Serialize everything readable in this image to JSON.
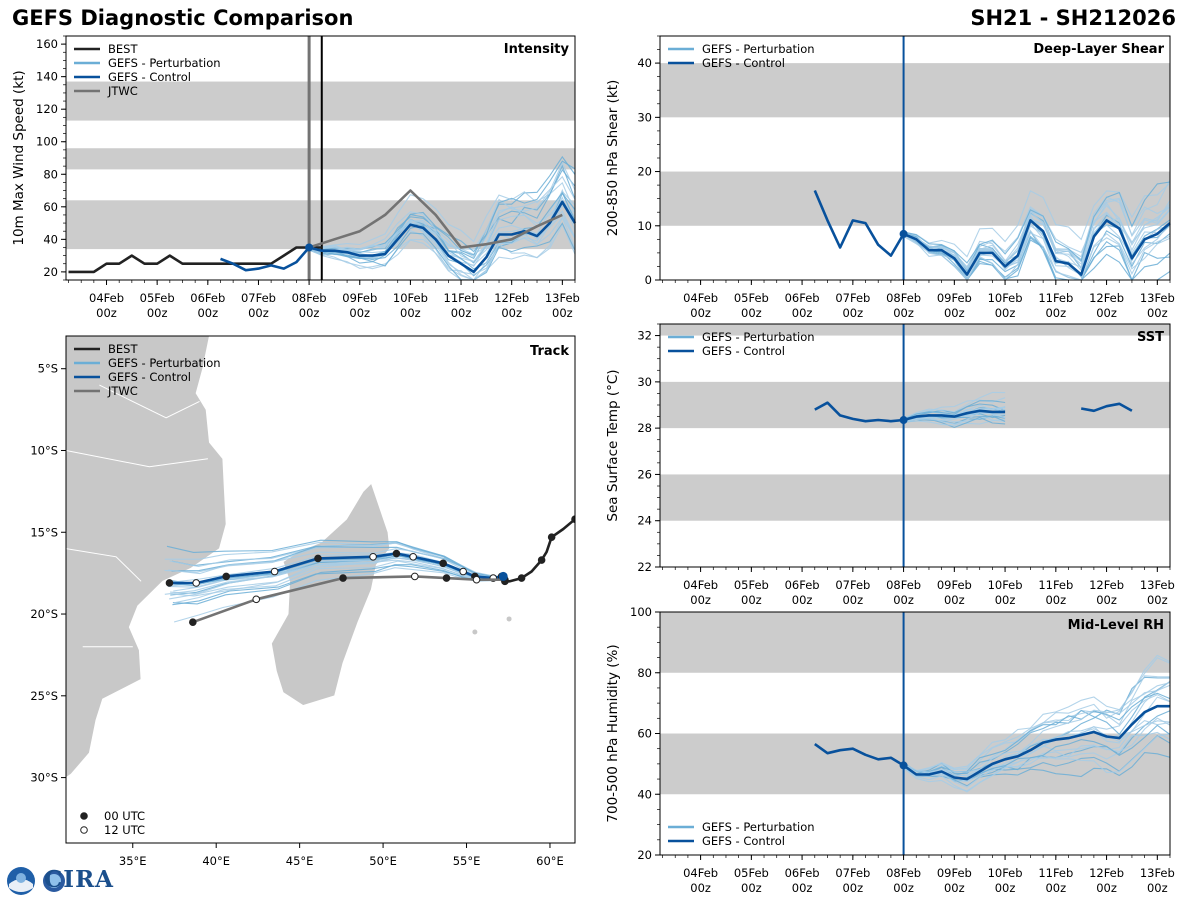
{
  "page": {
    "title_left": "GEFS Diagnostic Comparison",
    "title_right": "SH21 - SH212026",
    "logo_text": "CIRA",
    "noaa_text": "NOAA"
  },
  "colors": {
    "best": "#222222",
    "perturbation": "#6baed6",
    "perturbation_thin": "#a6cce6",
    "control": "#08519c",
    "jtwc": "#737373",
    "shade": "#cccccc",
    "land": "#c8c8c8"
  },
  "time_ticks": {
    "days": [
      "04Feb",
      "05Feb",
      "06Feb",
      "07Feb",
      "08Feb",
      "09Feb",
      "10Feb",
      "11Feb",
      "12Feb",
      "13Feb"
    ],
    "hour": "00z"
  },
  "chart_data": [
    {
      "id": "intensity",
      "type": "line",
      "title": "Intensity",
      "ylabel": "10m Max Wind Speed (kt)",
      "xlim_days": [
        3.2,
        13.25
      ],
      "ylim": [
        15,
        165
      ],
      "yticks": [
        20,
        40,
        60,
        80,
        100,
        120,
        140,
        160
      ],
      "shaded_bands": [
        [
          34,
          64
        ],
        [
          83,
          96
        ],
        [
          113,
          137
        ]
      ],
      "vlines_days": [
        8.0,
        8.25
      ],
      "legend": [
        "BEST",
        "GEFS - Perturbation",
        "GEFS - Control",
        "JTWC"
      ],
      "series": [
        {
          "name": "BEST",
          "x_days": [
            3.25,
            3.5,
            3.75,
            4.0,
            4.25,
            4.5,
            4.75,
            5.0,
            5.25,
            5.5,
            5.75,
            6.0,
            6.25,
            6.5,
            6.75,
            7.0,
            7.25,
            7.5,
            7.75,
            8.0,
            8.25
          ],
          "values": [
            20,
            20,
            20,
            25,
            25,
            30,
            25,
            25,
            30,
            25,
            25,
            25,
            25,
            25,
            25,
            25,
            25,
            30,
            35,
            35,
            35
          ]
        },
        {
          "name": "GEFS - Control",
          "x_days": [
            6.25,
            6.5,
            6.75,
            7.0,
            7.25,
            7.5,
            7.75,
            8.0,
            8.25,
            8.5,
            8.75,
            9.0,
            9.25,
            9.5,
            9.75,
            10.0,
            10.25,
            10.5,
            10.75,
            11.0,
            11.25,
            11.5,
            11.75,
            12.0,
            12.25,
            12.5,
            12.75,
            13.0,
            13.25
          ],
          "values": [
            28,
            25,
            21,
            22,
            24,
            22,
            26,
            35,
            33,
            33,
            32,
            30,
            30,
            31,
            40,
            49,
            47,
            40,
            30,
            25,
            20,
            29,
            43,
            43,
            45,
            42,
            50,
            63,
            50
          ]
        },
        {
          "name": "JTWC",
          "x_days": [
            8.0,
            8.5,
            9.0,
            9.5,
            10.0,
            10.5,
            11.0,
            11.5,
            12.0,
            12.5,
            13.0
          ],
          "values": [
            35,
            40,
            45,
            55,
            70,
            55,
            35,
            37,
            40,
            48,
            55
          ]
        }
      ]
    },
    {
      "id": "shear",
      "type": "line",
      "title": "Deep-Layer Shear",
      "ylabel": "200-850 hPa Shear (kt)",
      "xlim_days": [
        3.2,
        13.25
      ],
      "ylim": [
        0,
        45
      ],
      "yticks": [
        0,
        10,
        20,
        30,
        40
      ],
      "shaded_bands": [
        [
          10,
          20
        ],
        [
          30,
          40
        ]
      ],
      "vlines_days": [
        8.0
      ],
      "legend": [
        "GEFS - Perturbation",
        "GEFS - Control"
      ],
      "series": [
        {
          "name": "GEFS - Control",
          "x_days": [
            6.25,
            6.5,
            6.75,
            7.0,
            7.25,
            7.5,
            7.75,
            8.0,
            8.25,
            8.5,
            8.75,
            9.0,
            9.25,
            9.5,
            9.75,
            10.0,
            10.25,
            10.5,
            10.75,
            11.0,
            11.25,
            11.5,
            11.75,
            12.0,
            12.25,
            12.5,
            12.75,
            13.0,
            13.25
          ],
          "values": [
            16.5,
            11,
            6,
            11,
            10.5,
            6.5,
            4.5,
            8.5,
            7.5,
            5.5,
            5.5,
            4,
            1,
            5,
            5,
            2.5,
            4.5,
            11,
            9,
            3.5,
            3,
            1,
            8,
            11,
            9.5,
            4,
            7.5,
            8.5,
            10.5
          ]
        }
      ]
    },
    {
      "id": "sst",
      "type": "line",
      "title": "SST",
      "ylabel": "Sea Surface Temp (°C)",
      "xlim_days": [
        3.2,
        13.25
      ],
      "ylim": [
        22,
        32.5
      ],
      "yticks": [
        22,
        24,
        26,
        28,
        30,
        32
      ],
      "shaded_bands": [
        [
          24,
          26
        ],
        [
          28,
          30
        ],
        [
          32,
          32.5
        ]
      ],
      "vlines_days": [
        8.0
      ],
      "legend": [
        "GEFS - Perturbation",
        "GEFS - Control"
      ],
      "series": [
        {
          "name": "GEFS - Control",
          "x_days": [
            6.25,
            6.5,
            6.75,
            7.0,
            7.25,
            7.5,
            7.75,
            8.0,
            8.25,
            8.5,
            8.75,
            9.0,
            9.25,
            9.5,
            9.75,
            10.0
          ],
          "values": [
            28.8,
            29.1,
            28.55,
            28.4,
            28.3,
            28.35,
            28.3,
            28.35,
            28.5,
            28.55,
            28.55,
            28.5,
            28.65,
            28.75,
            28.7,
            28.7
          ]
        },
        {
          "name": "GEFS - Control (late)",
          "x_days": [
            11.5,
            11.75,
            12.0,
            12.25,
            12.5
          ],
          "values": [
            28.85,
            28.75,
            28.95,
            29.05,
            28.75
          ]
        }
      ]
    },
    {
      "id": "rh",
      "type": "line",
      "title": "Mid-Level RH",
      "ylabel": "700-500 hPa Humidity (%)",
      "xlim_days": [
        3.2,
        13.25
      ],
      "ylim": [
        20,
        100
      ],
      "yticks": [
        20,
        40,
        60,
        80,
        100
      ],
      "shaded_bands": [
        [
          40,
          60
        ],
        [
          80,
          100
        ]
      ],
      "vlines_days": [
        8.0
      ],
      "legend": [
        "GEFS - Perturbation",
        "GEFS - Control"
      ],
      "series": [
        {
          "name": "GEFS - Control",
          "x_days": [
            6.25,
            6.5,
            6.75,
            7.0,
            7.25,
            7.5,
            7.75,
            8.0,
            8.25,
            8.5,
            8.75,
            9.0,
            9.25,
            9.5,
            9.75,
            10.0,
            10.25,
            10.5,
            10.75,
            11.0,
            11.25,
            11.5,
            11.75,
            12.0,
            12.25,
            12.5,
            12.75,
            13.0,
            13.25
          ],
          "values": [
            56.5,
            53.5,
            54.5,
            55,
            53,
            51.5,
            52,
            49.5,
            46.5,
            46.5,
            47.5,
            45.5,
            45,
            47.5,
            50,
            51.5,
            52.5,
            54.5,
            57,
            58,
            58.5,
            59.5,
            60.5,
            59,
            58.5,
            63,
            67,
            69,
            69
          ]
        }
      ]
    },
    {
      "id": "track",
      "type": "line",
      "title": "Track",
      "xlim_lon": [
        31,
        61.5
      ],
      "ylim_lat": [
        -34,
        -3
      ],
      "xticks": [
        "35°E",
        "40°E",
        "45°E",
        "50°E",
        "55°E",
        "60°E"
      ],
      "yticks": [
        "5°S",
        "10°S",
        "15°S",
        "20°S",
        "25°S",
        "30°S"
      ],
      "legend": [
        "BEST",
        "GEFS - Perturbation",
        "GEFS - Control",
        "JTWC"
      ],
      "marker_legend": [
        "00 UTC",
        "12 UTC"
      ],
      "series": [
        {
          "name": "BEST",
          "lon": [
            61.5,
            60.8,
            60.1,
            59.8,
            59.5,
            58.9,
            58.3,
            57.6,
            57.3,
            56.8
          ],
          "lat": [
            -14.2,
            -14.8,
            -15.3,
            -16.2,
            -16.7,
            -17.4,
            -17.8,
            -18.0,
            -18.0,
            -17.8
          ]
        },
        {
          "name": "GEFS - Control",
          "lon": [
            57.1,
            56.6,
            55.5,
            54.8,
            53.6,
            51.8,
            50.8,
            49.4,
            46.1,
            43.5,
            40.6,
            38.8,
            37.2
          ],
          "lat": [
            -17.7,
            -17.8,
            -17.7,
            -17.4,
            -16.9,
            -16.5,
            -16.3,
            -16.5,
            -16.6,
            -17.4,
            -17.7,
            -18.1,
            -18.1
          ]
        },
        {
          "name": "JTWC",
          "lon": [
            57.3,
            55.6,
            53.8,
            51.9,
            47.6,
            42.4,
            38.6
          ],
          "lat": [
            -17.9,
            -17.9,
            -17.8,
            -17.7,
            -17.8,
            -19.1,
            -20.5
          ]
        }
      ]
    }
  ]
}
